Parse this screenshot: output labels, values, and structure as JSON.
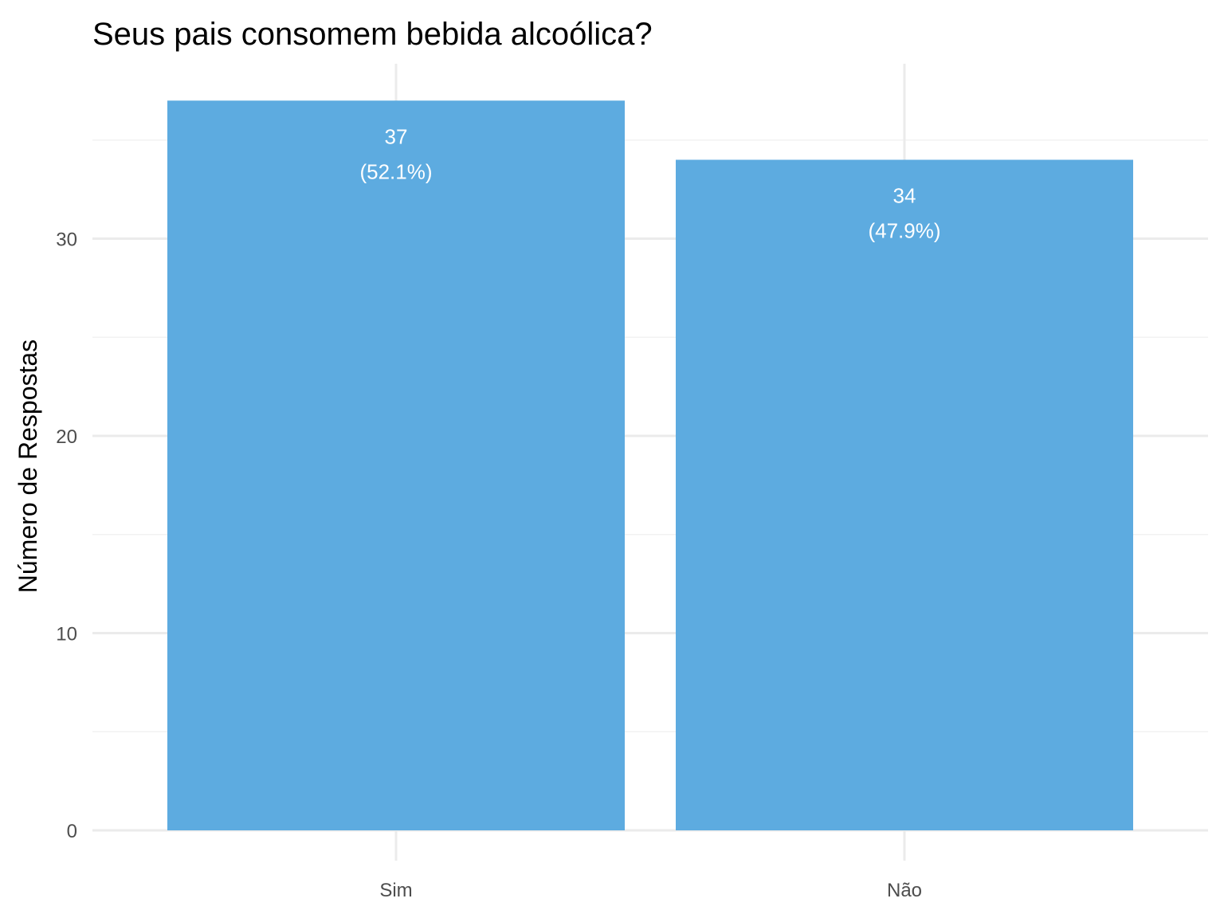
{
  "chart_data": {
    "type": "bar",
    "title": "Seus pais consomem bebida alcoólica?",
    "xlabel": "",
    "ylabel": "Número de Respostas",
    "categories": [
      "Sim",
      "Não"
    ],
    "values": [
      37,
      34
    ],
    "data_labels": [
      {
        "count": "37",
        "percent": "(52.1%)"
      },
      {
        "count": "34",
        "percent": "(47.9%)"
      }
    ],
    "yticks": [
      0,
      10,
      20,
      30
    ],
    "ylim": [
      0,
      38.85
    ],
    "grid": true,
    "legend": "none",
    "colors": {
      "bar": "#5DABE0",
      "grid_major": "#EBEBEB",
      "grid_minor": "#F2F2F2",
      "label": "#FFFFFF"
    }
  }
}
